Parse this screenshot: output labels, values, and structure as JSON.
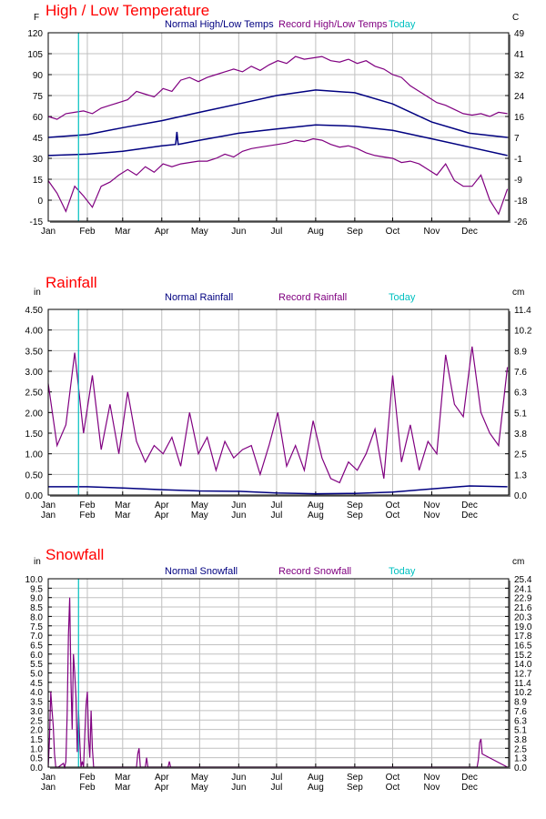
{
  "colors": {
    "title": "#ff0000",
    "normal": "#000080",
    "record": "#800080",
    "today": "#00c0c0",
    "grid": "#c0c0c0"
  },
  "today_day": 24,
  "months": [
    "Jan",
    "Feb",
    "Mar",
    "Apr",
    "May",
    "Jun",
    "Jul",
    "Aug",
    "Sep",
    "Oct",
    "Nov",
    "Dec"
  ],
  "month_start_days": [
    0,
    31,
    59,
    90,
    120,
    151,
    181,
    212,
    243,
    273,
    304,
    334
  ],
  "chart_data": [
    {
      "type": "line",
      "title": "High / Low Temperature",
      "left_unit": "F",
      "right_unit": "C",
      "legend": [
        "Normal High/Low Temps",
        "Record High/Low Temps",
        "Today"
      ],
      "ylim": [
        -15,
        120
      ],
      "yticks": [
        "120",
        "105",
        "90",
        "75",
        "60",
        "45",
        "30",
        "15",
        "0",
        "-15"
      ],
      "yticks_right": [
        "49",
        "41",
        "32",
        "24",
        "16",
        "7",
        "-1",
        "-9",
        "-18",
        "-26"
      ],
      "double_month_labels": false,
      "series": [
        {
          "name": "Normal High",
          "kind": "normal",
          "x": [
            0,
            31,
            59,
            90,
            120,
            151,
            181,
            212,
            243,
            273,
            304,
            334,
            364
          ],
          "y": [
            45,
            47,
            52,
            57,
            63,
            69,
            75,
            79,
            77,
            69,
            56,
            48,
            45
          ]
        },
        {
          "name": "Normal Low",
          "kind": "normal",
          "x": [
            0,
            31,
            59,
            90,
            101,
            102,
            103,
            120,
            151,
            181,
            212,
            243,
            273,
            304,
            334,
            364
          ],
          "y": [
            32,
            33,
            35,
            39,
            40,
            49,
            40,
            43,
            48,
            51,
            54,
            53,
            50,
            44,
            38,
            32
          ]
        },
        {
          "name": "Record High",
          "kind": "record",
          "x_step": 7,
          "y": [
            60,
            58,
            62,
            63,
            64,
            62,
            66,
            68,
            70,
            72,
            78,
            76,
            74,
            80,
            78,
            86,
            88,
            85,
            88,
            90,
            92,
            94,
            92,
            96,
            93,
            97,
            100,
            98,
            103,
            101,
            102,
            103,
            100,
            99,
            101,
            98,
            100,
            96,
            94,
            90,
            88,
            82,
            78,
            74,
            70,
            68,
            65,
            62,
            61,
            62,
            60,
            63,
            62
          ]
        },
        {
          "name": "Record Low",
          "kind": "record",
          "x_step": 7,
          "y": [
            14,
            5,
            -8,
            10,
            3,
            -5,
            10,
            13,
            18,
            22,
            18,
            24,
            20,
            26,
            24,
            26,
            27,
            28,
            28,
            30,
            33,
            31,
            35,
            37,
            38,
            39,
            40,
            41,
            43,
            42,
            44,
            43,
            40,
            38,
            39,
            37,
            34,
            32,
            31,
            30,
            27,
            28,
            26,
            22,
            18,
            26,
            14,
            10,
            10,
            18,
            0,
            -10,
            8
          ]
        }
      ]
    },
    {
      "type": "line",
      "title": "Rainfall",
      "left_unit": "in",
      "right_unit": "cm",
      "legend": [
        "Normal Rainfall",
        "Record Rainfall",
        "Today"
      ],
      "ylim": [
        0,
        4.5
      ],
      "yticks": [
        "4.50",
        "4.00",
        "3.50",
        "3.00",
        "2.50",
        "2.00",
        "1.50",
        "1.00",
        "0.50",
        "0.00"
      ],
      "yticks_right": [
        "11.4",
        "10.2",
        "8.9",
        "7.6",
        "6.3",
        "5.1",
        "3.8",
        "2.5",
        "1.3",
        "0.0"
      ],
      "double_month_labels": true,
      "series": [
        {
          "name": "Normal Rainfall",
          "kind": "normal",
          "x": [
            0,
            31,
            59,
            90,
            120,
            151,
            181,
            212,
            243,
            273,
            304,
            334,
            364
          ],
          "y": [
            0.2,
            0.2,
            0.17,
            0.13,
            0.1,
            0.09,
            0.05,
            0.03,
            0.04,
            0.07,
            0.15,
            0.22,
            0.2
          ]
        },
        {
          "name": "Record Rainfall",
          "kind": "record",
          "x_step": 7,
          "y": [
            2.7,
            1.2,
            1.7,
            3.45,
            1.5,
            2.9,
            1.1,
            2.2,
            1.0,
            2.5,
            1.3,
            0.8,
            1.2,
            1.0,
            1.4,
            0.7,
            2.0,
            1.0,
            1.4,
            0.6,
            1.3,
            0.9,
            1.1,
            1.2,
            0.5,
            1.2,
            2.0,
            0.7,
            1.2,
            0.6,
            1.8,
            0.9,
            0.4,
            0.3,
            0.8,
            0.6,
            1.0,
            1.6,
            0.4,
            2.9,
            0.8,
            1.7,
            0.6,
            1.3,
            1.0,
            3.4,
            2.2,
            1.9,
            3.6,
            2.0,
            1.5,
            1.2,
            3.1
          ]
        }
      ]
    },
    {
      "type": "line",
      "title": "Snowfall",
      "left_unit": "in",
      "right_unit": "cm",
      "legend": [
        "Normal Snowfall",
        "Record Snowfall",
        "Today"
      ],
      "ylim": [
        0,
        10
      ],
      "yticks": [
        "10.0",
        "9.5",
        "9.0",
        "8.5",
        "8.0",
        "7.5",
        "7.0",
        "6.5",
        "6.0",
        "5.5",
        "5.0",
        "4.5",
        "4.0",
        "3.5",
        "3.0",
        "2.5",
        "2.0",
        "1.5",
        "1.0",
        "0.5",
        "0.0"
      ],
      "yticks_right": [
        "25.4",
        "24.1",
        "22.9",
        "21.6",
        "20.3",
        "19.0",
        "17.8",
        "16.5",
        "15.2",
        "14.0",
        "12.7",
        "11.4",
        "10.2",
        "8.9",
        "7.6",
        "6.3",
        "5.1",
        "3.8",
        "2.5",
        "1.3",
        "0.0"
      ],
      "double_month_labels": true,
      "series": [
        {
          "name": "Record Snowfall",
          "kind": "record",
          "x": [
            0,
            1,
            2,
            3,
            4,
            5,
            6,
            7,
            8,
            12,
            13,
            14,
            15,
            16,
            17,
            18,
            19,
            20,
            21,
            22,
            23,
            24,
            25,
            26,
            27,
            28,
            29,
            30,
            31,
            32,
            33,
            34,
            35,
            36,
            37,
            70,
            71,
            72,
            73,
            77,
            78,
            79,
            95,
            96,
            97,
            340,
            341,
            342,
            343,
            344,
            364
          ],
          "y": [
            0,
            1.5,
            4,
            3,
            2.2,
            0.7,
            0,
            0,
            0,
            0.2,
            0,
            0.3,
            2.8,
            7,
            9,
            4.5,
            2,
            6,
            5,
            3.7,
            0.8,
            3,
            1.3,
            0,
            0.3,
            0,
            1.7,
            3.3,
            4,
            1.5,
            0.5,
            3,
            1,
            0,
            0,
            0,
            0.7,
            1,
            0,
            0,
            0.5,
            0,
            0,
            0.3,
            0,
            0,
            0.4,
            1.3,
            1.5,
            0.7,
            0
          ]
        }
      ]
    }
  ]
}
